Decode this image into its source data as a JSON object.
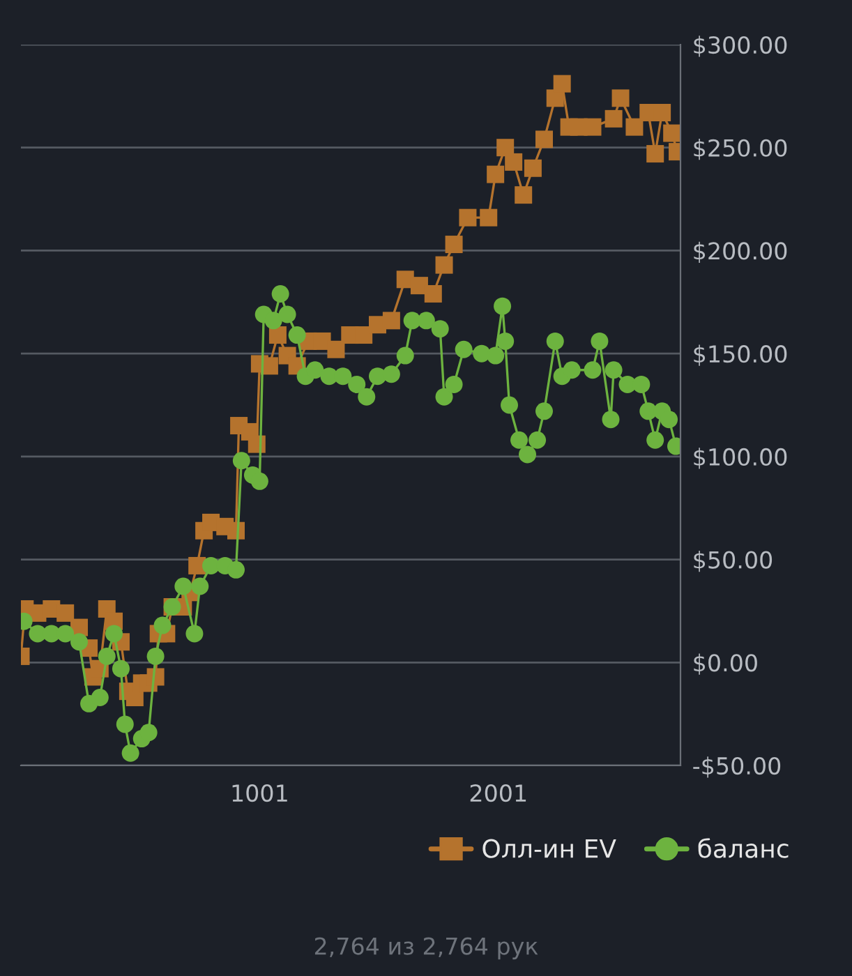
{
  "chart_data": {
    "type": "line",
    "xlim": [
      1,
      2764
    ],
    "xticks": [
      1001,
      2001
    ],
    "ylim": [
      -50,
      300
    ],
    "yticks": [
      {
        "value": -50,
        "label": "-$50.00"
      },
      {
        "value": 0,
        "label": "$0.00"
      },
      {
        "value": 50,
        "label": "$50.00"
      },
      {
        "value": 100,
        "label": "$100.00"
      },
      {
        "value": 150,
        "label": "$150.00"
      },
      {
        "value": 200,
        "label": "$200.00"
      },
      {
        "value": 250,
        "label": "$250.00"
      },
      {
        "value": 300,
        "label": "$300.00"
      }
    ],
    "grid": "y",
    "legend": "bottom right",
    "series": [
      {
        "name": "Олл-ин EV",
        "color": "#b5732d",
        "marker": "square",
        "x": [
          1,
          18,
          71,
          129,
          187,
          245,
          286,
          303,
          332,
          361,
          391,
          420,
          449,
          478,
          507,
          536,
          565,
          577,
          611,
          635,
          681,
          710,
          739,
          768,
          797,
          856,
          902,
          914,
          960,
          989,
          1001,
          1042,
          1077,
          1117,
          1158,
          1204,
          1263,
          1321,
          1379,
          1437,
          1495,
          1553,
          1611,
          1670,
          1728,
          1774,
          1815,
          1873,
          1960,
          1989,
          2030,
          2065,
          2106,
          2146,
          2193,
          2239,
          2268,
          2297,
          2338,
          2396,
          2484,
          2513,
          2571,
          2629,
          2658,
          2687,
          2728,
          2751
        ],
        "values": [
          3,
          26,
          24,
          26,
          24,
          17,
          7,
          -7,
          -3,
          26,
          20,
          10,
          -14,
          -17,
          -10,
          -10,
          -7,
          14,
          14,
          27,
          27,
          34,
          47,
          64,
          68,
          66,
          64,
          115,
          112,
          106,
          145,
          144,
          159,
          149,
          144,
          156,
          156,
          152,
          159,
          159,
          164,
          166,
          186,
          183,
          179,
          193,
          203,
          216,
          216,
          237,
          250,
          243,
          227,
          240,
          254,
          274,
          281,
          260,
          260,
          260,
          264,
          274,
          260,
          267,
          247,
          267,
          257,
          248
        ]
      },
      {
        "name": "баланс",
        "color": "#6db33f",
        "marker": "circle",
        "x": [
          13,
          71,
          129,
          187,
          245,
          286,
          332,
          361,
          391,
          420,
          437,
          460,
          507,
          536,
          565,
          594,
          635,
          681,
          728,
          751,
          797,
          856,
          902,
          925,
          972,
          1001,
          1018,
          1059,
          1088,
          1117,
          1158,
          1193,
          1233,
          1292,
          1350,
          1408,
          1449,
          1495,
          1553,
          1611,
          1640,
          1699,
          1757,
          1774,
          1815,
          1856,
          1931,
          1989,
          2018,
          2030,
          2047,
          2088,
          2123,
          2164,
          2193,
          2239,
          2268,
          2309,
          2396,
          2425,
          2472,
          2484,
          2542,
          2600,
          2629,
          2658,
          2687,
          2716,
          2745
        ],
        "values": [
          20,
          14,
          14,
          14,
          10,
          -20,
          -17,
          3,
          14,
          -3,
          -30,
          -44,
          -37,
          -34,
          3,
          18,
          27,
          37,
          14,
          37,
          47,
          47,
          45,
          98,
          91,
          88,
          169,
          166,
          179,
          169,
          159,
          139,
          142,
          139,
          139,
          135,
          129,
          139,
          140,
          149,
          166,
          166,
          162,
          129,
          135,
          152,
          150,
          149,
          173,
          156,
          125,
          108,
          101,
          108,
          122,
          156,
          139,
          142,
          142,
          156,
          118,
          142,
          135,
          135,
          122,
          108,
          122,
          118,
          105
        ]
      }
    ],
    "annotations": [
      "2,764 из 2,764 рук"
    ]
  }
}
